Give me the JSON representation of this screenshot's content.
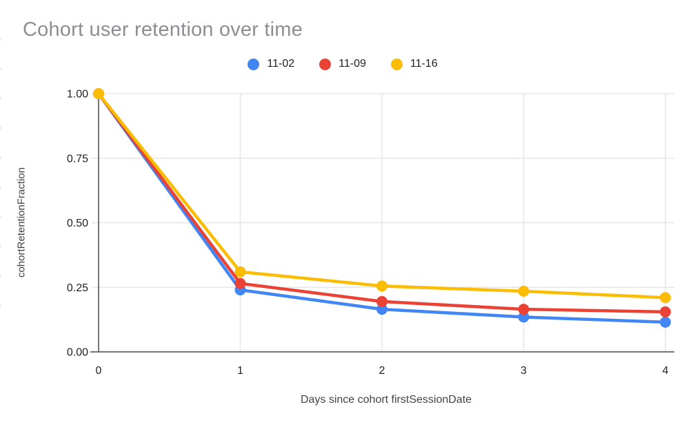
{
  "page": {
    "background": "#ffffff"
  },
  "chart_data": {
    "type": "line",
    "title": "Cohort user retention over time",
    "xlabel": "Days since cohort firstSessionDate",
    "ylabel": "cohortRetentionFraction",
    "x": [
      0,
      1,
      2,
      3,
      4
    ],
    "x_tick_labels": [
      "0",
      "1",
      "2",
      "3",
      "4"
    ],
    "y_ticks": [
      {
        "value": 0.0,
        "label": "0.00"
      },
      {
        "value": 0.25,
        "label": "0.25"
      },
      {
        "value": 0.5,
        "label": "0.50"
      },
      {
        "value": 0.75,
        "label": "0.75"
      },
      {
        "value": 1.0,
        "label": "1.00"
      }
    ],
    "ylim": [
      0,
      1
    ],
    "grid": true,
    "legend_position": "top-center",
    "series": [
      {
        "name": "11-02",
        "color": "#4285F4",
        "values": [
          1.0,
          0.24,
          0.165,
          0.135,
          0.115
        ]
      },
      {
        "name": "11-09",
        "color": "#EA4335",
        "values": [
          1.0,
          0.265,
          0.195,
          0.165,
          0.155
        ]
      },
      {
        "name": "11-16",
        "color": "#FBBC04",
        "values": [
          1.0,
          0.31,
          0.255,
          0.235,
          0.21
        ]
      }
    ],
    "colors": {
      "title": "#8b8f94",
      "grid": "#e6e6e6",
      "axis": "#757575",
      "tick_label": "#1f1f1f",
      "axis_title": "#424242"
    }
  }
}
